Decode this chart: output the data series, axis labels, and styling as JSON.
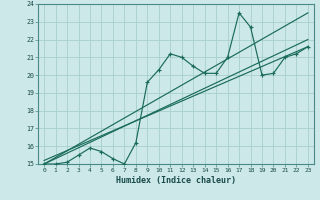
{
  "title": "",
  "xlabel": "Humidex (Indice chaleur)",
  "xlim": [
    -0.5,
    23.5
  ],
  "ylim": [
    15,
    24
  ],
  "bg_color": "#cce8e8",
  "grid_color": "#a8cece",
  "line_color": "#1a6b5a",
  "x_data": [
    0,
    1,
    2,
    3,
    4,
    5,
    6,
    7,
    8,
    9,
    10,
    11,
    12,
    13,
    14,
    15,
    16,
    17,
    18,
    19,
    20,
    21,
    22,
    23
  ],
  "y_data": [
    15.0,
    15.0,
    15.1,
    15.5,
    15.9,
    15.7,
    15.3,
    15.0,
    16.2,
    19.6,
    20.3,
    21.2,
    21.0,
    20.5,
    20.1,
    20.1,
    21.0,
    23.5,
    22.7,
    20.0,
    20.1,
    21.0,
    21.2,
    21.6
  ],
  "reg_lines": [
    [
      [
        0,
        23
      ],
      [
        15.0,
        23.5
      ]
    ],
    [
      [
        0,
        23
      ],
      [
        15.0,
        22.0
      ]
    ],
    [
      [
        0,
        23
      ],
      [
        15.2,
        21.6
      ]
    ]
  ]
}
